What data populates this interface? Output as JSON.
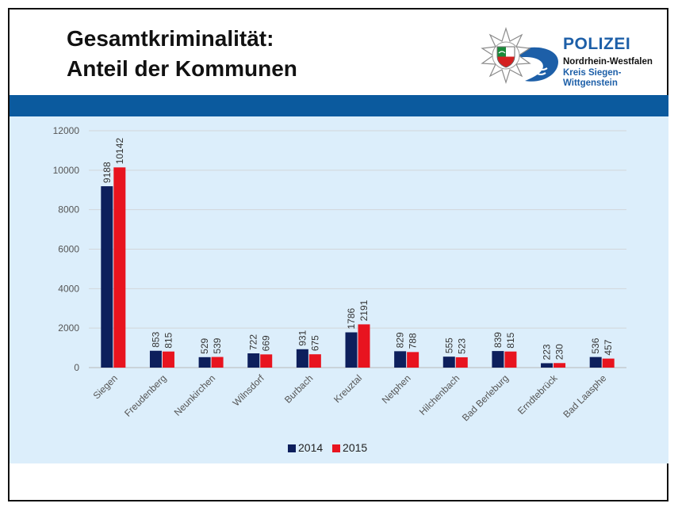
{
  "slide": {
    "title_line1": "Gesamtkriminalität:",
    "title_line2": "Anteil der Kommunen"
  },
  "logo": {
    "org": "POLIZEI",
    "state": "Nordrhein-Westfalen",
    "district": "Kreis Siegen-Wittgenstein",
    "icon": "police-star-emblem"
  },
  "colors": {
    "band": "#0b5a9e",
    "chart_bg": "#dceefb",
    "series_2014": "#0d1f5c",
    "series_2015": "#e8141f"
  },
  "chart_data": {
    "type": "bar",
    "categories": [
      "Siegen",
      "Freudenberg",
      "Neunkirchen",
      "Wilnsdorf",
      "Burbach",
      "Kreuztal",
      "Netphen",
      "Hilchenbach",
      "Bad Berleburg",
      "Erndtebrück",
      "Bad Laasphe"
    ],
    "series": [
      {
        "name": "2014",
        "color": "#0d1f5c",
        "values": [
          9188,
          853,
          529,
          722,
          931,
          1786,
          829,
          555,
          839,
          223,
          536
        ]
      },
      {
        "name": "2015",
        "color": "#e8141f",
        "values": [
          10142,
          815,
          539,
          669,
          675,
          2191,
          788,
          523,
          815,
          230,
          457
        ]
      }
    ],
    "title": "",
    "xlabel": "",
    "ylabel": "",
    "ylim": [
      0,
      12000
    ],
    "yticks": [
      0,
      2000,
      4000,
      6000,
      8000,
      10000,
      12000
    ],
    "grid": true,
    "legend_position": "bottom",
    "data_labels": true
  }
}
